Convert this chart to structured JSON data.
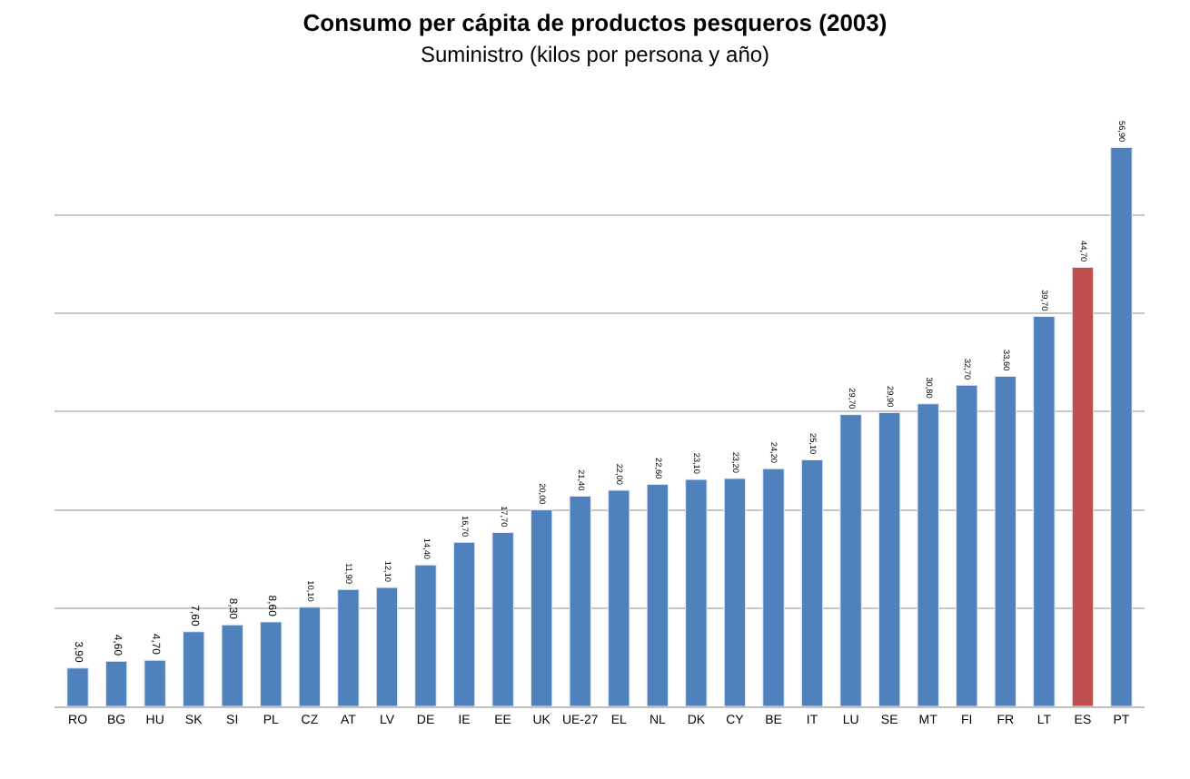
{
  "chart_data": {
    "type": "bar",
    "title": "Consumo per cápita de productos pesqueros (2003)",
    "subtitle": "Suministro (kilos por persona y año)",
    "categories": [
      "RO",
      "BG",
      "HU",
      "SK",
      "SI",
      "PL",
      "CZ",
      "AT",
      "LV",
      "DE",
      "IE",
      "EE",
      "UK",
      "UE-27",
      "EL",
      "NL",
      "DK",
      "CY",
      "BE",
      "IT",
      "LU",
      "SE",
      "MT",
      "FI",
      "FR",
      "LT",
      "ES",
      "PT"
    ],
    "values": [
      3.9,
      4.6,
      4.7,
      7.6,
      8.3,
      8.6,
      10.1,
      11.9,
      12.1,
      14.4,
      16.7,
      17.7,
      20.0,
      21.4,
      22.0,
      22.6,
      23.1,
      23.2,
      24.2,
      25.1,
      29.7,
      29.9,
      30.8,
      32.7,
      33.6,
      39.7,
      44.7,
      56.9
    ],
    "value_labels": [
      "3,90",
      "4,60",
      "4,70",
      "7,60",
      "8,30",
      "8,60",
      "10,10",
      "11,90",
      "12,10",
      "14,40",
      "16,70",
      "17,70",
      "20,00",
      "21,40",
      "22,00",
      "22,60",
      "23,10",
      "23,20",
      "24,20",
      "25,10",
      "29,70",
      "29,90",
      "30,80",
      "32,70",
      "33,60",
      "39,70",
      "44,70",
      "56,90"
    ],
    "colors": [
      "#4f81bd",
      "#4f81bd",
      "#4f81bd",
      "#4f81bd",
      "#4f81bd",
      "#4f81bd",
      "#4f81bd",
      "#4f81bd",
      "#4f81bd",
      "#4f81bd",
      "#4f81bd",
      "#4f81bd",
      "#4f81bd",
      "#4f81bd",
      "#4f81bd",
      "#4f81bd",
      "#4f81bd",
      "#4f81bd",
      "#4f81bd",
      "#4f81bd",
      "#4f81bd",
      "#4f81bd",
      "#4f81bd",
      "#4f81bd",
      "#4f81bd",
      "#4f81bd",
      "#c0504d",
      "#4f81bd"
    ],
    "grid": "y",
    "tick_labels": "x"
  }
}
